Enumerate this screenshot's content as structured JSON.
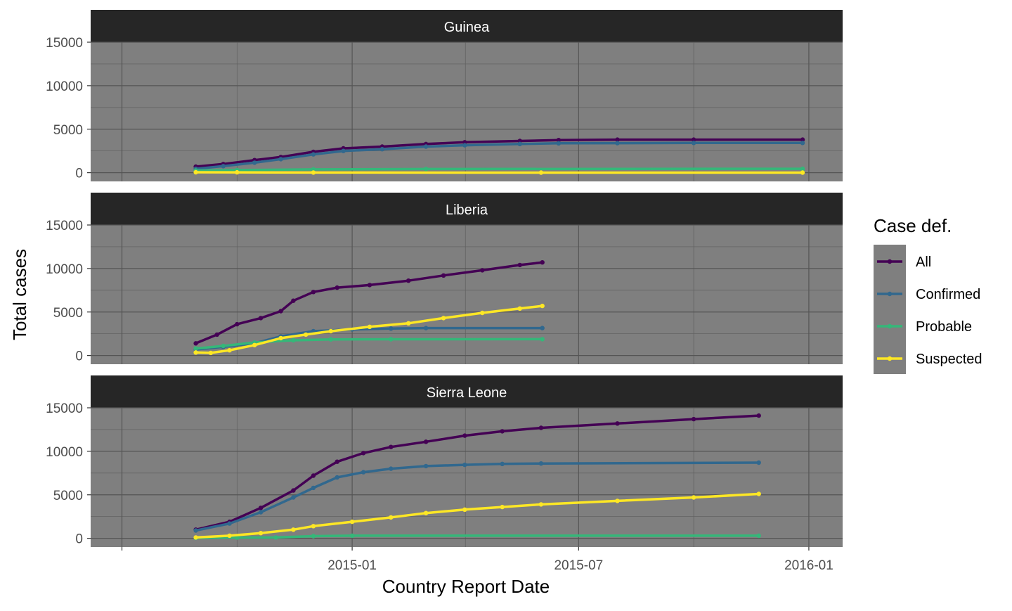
{
  "chart_data": {
    "type": "line",
    "xlabel": "Country Report Date",
    "ylabel": "Total cases",
    "x_ticks": [
      "2014-07",
      "2015-01",
      "2015-07",
      "2016-01"
    ],
    "x_tick_labels": [
      "",
      "2015-01",
      "2015-07",
      "2016-01"
    ],
    "xlim": [
      "2014-06-06",
      "2016-01-28"
    ],
    "y_ticks": [
      0,
      5000,
      10000,
      15000
    ],
    "y_tick_labels": [
      "0",
      "5000",
      "10000",
      "15000"
    ],
    "ylim": [
      -1000,
      15000
    ],
    "grid": true,
    "panel_background": "#7f7f7f",
    "strip_background": "#262626",
    "legend": {
      "title": "Case def.",
      "position": "right",
      "entries": [
        {
          "name": "All",
          "color": "#440154"
        },
        {
          "name": "Confirmed",
          "color": "#31688e"
        },
        {
          "name": "Probable",
          "color": "#35b779"
        },
        {
          "name": "Suspected",
          "color": "#fde725"
        }
      ]
    },
    "facets": [
      {
        "title": "Guinea",
        "series": [
          {
            "name": "All",
            "points": [
              [
                "2014-08-29",
                700
              ],
              [
                "2014-09-20",
                1000
              ],
              [
                "2014-10-15",
                1450
              ],
              [
                "2014-11-05",
                1800
              ],
              [
                "2014-12-01",
                2400
              ],
              [
                "2014-12-25",
                2800
              ],
              [
                "2015-01-25",
                3000
              ],
              [
                "2015-03-01",
                3300
              ],
              [
                "2015-04-01",
                3500
              ],
              [
                "2015-05-15",
                3650
              ],
              [
                "2015-06-15",
                3750
              ],
              [
                "2015-08-01",
                3800
              ],
              [
                "2015-10-01",
                3800
              ],
              [
                "2015-12-27",
                3800
              ]
            ]
          },
          {
            "name": "Confirmed",
            "points": [
              [
                "2014-08-29",
                450
              ],
              [
                "2014-09-20",
                750
              ],
              [
                "2014-10-15",
                1150
              ],
              [
                "2014-11-05",
                1550
              ],
              [
                "2014-12-01",
                2100
              ],
              [
                "2014-12-25",
                2500
              ],
              [
                "2015-01-25",
                2700
              ],
              [
                "2015-03-01",
                3000
              ],
              [
                "2015-04-01",
                3150
              ],
              [
                "2015-05-15",
                3300
              ],
              [
                "2015-06-15",
                3380
              ],
              [
                "2015-08-01",
                3400
              ],
              [
                "2015-10-01",
                3420
              ],
              [
                "2015-12-27",
                3420
              ]
            ]
          },
          {
            "name": "Probable",
            "points": [
              [
                "2014-08-29",
                250
              ],
              [
                "2014-10-01",
                300
              ],
              [
                "2014-12-01",
                380
              ],
              [
                "2015-03-01",
                420
              ],
              [
                "2015-12-27",
                450
              ]
            ]
          },
          {
            "name": "Suspected",
            "points": [
              [
                "2014-08-29",
                50
              ],
              [
                "2014-10-01",
                40
              ],
              [
                "2014-12-01",
                20
              ],
              [
                "2015-06-01",
                10
              ],
              [
                "2015-12-27",
                10
              ]
            ]
          }
        ]
      },
      {
        "title": "Liberia",
        "series": [
          {
            "name": "All",
            "points": [
              [
                "2014-08-29",
                1400
              ],
              [
                "2014-09-15",
                2400
              ],
              [
                "2014-10-01",
                3600
              ],
              [
                "2014-10-20",
                4300
              ],
              [
                "2014-11-05",
                5100
              ],
              [
                "2014-11-15",
                6300
              ],
              [
                "2014-12-01",
                7300
              ],
              [
                "2014-12-20",
                7800
              ],
              [
                "2015-01-15",
                8100
              ],
              [
                "2015-02-15",
                8600
              ],
              [
                "2015-03-15",
                9200
              ],
              [
                "2015-04-15",
                9800
              ],
              [
                "2015-05-15",
                10400
              ],
              [
                "2015-06-02",
                10700
              ]
            ]
          },
          {
            "name": "Confirmed",
            "points": [
              [
                "2014-08-29",
                700
              ],
              [
                "2014-09-20",
                1000
              ],
              [
                "2014-10-15",
                1400
              ],
              [
                "2014-11-05",
                2200
              ],
              [
                "2014-12-01",
                2800
              ],
              [
                "2015-01-01",
                3000
              ],
              [
                "2015-02-01",
                3100
              ],
              [
                "2015-03-01",
                3150
              ],
              [
                "2015-06-02",
                3150
              ]
            ]
          },
          {
            "name": "Probable",
            "points": [
              [
                "2014-08-29",
                800
              ],
              [
                "2014-09-20",
                1100
              ],
              [
                "2014-10-15",
                1500
              ],
              [
                "2014-11-15",
                1750
              ],
              [
                "2014-12-15",
                1850
              ],
              [
                "2015-02-01",
                1870
              ],
              [
                "2015-06-02",
                1880
              ]
            ]
          },
          {
            "name": "Suspected",
            "points": [
              [
                "2014-08-29",
                350
              ],
              [
                "2014-09-10",
                300
              ],
              [
                "2014-09-25",
                600
              ],
              [
                "2014-10-15",
                1200
              ],
              [
                "2014-11-05",
                2000
              ],
              [
                "2014-11-25",
                2400
              ],
              [
                "2014-12-15",
                2800
              ],
              [
                "2015-01-15",
                3300
              ],
              [
                "2015-02-15",
                3700
              ],
              [
                "2015-03-15",
                4300
              ],
              [
                "2015-04-15",
                4900
              ],
              [
                "2015-05-15",
                5400
              ],
              [
                "2015-06-02",
                5700
              ]
            ]
          }
        ]
      },
      {
        "title": "Sierra Leone",
        "series": [
          {
            "name": "All",
            "points": [
              [
                "2014-08-29",
                1000
              ],
              [
                "2014-09-25",
                1900
              ],
              [
                "2014-10-20",
                3500
              ],
              [
                "2014-11-15",
                5500
              ],
              [
                "2014-12-01",
                7200
              ],
              [
                "2014-12-20",
                8800
              ],
              [
                "2015-01-10",
                9800
              ],
              [
                "2015-02-01",
                10500
              ],
              [
                "2015-03-01",
                11100
              ],
              [
                "2015-04-01",
                11800
              ],
              [
                "2015-05-01",
                12300
              ],
              [
                "2015-06-01",
                12700
              ],
              [
                "2015-08-01",
                13200
              ],
              [
                "2015-10-01",
                13700
              ],
              [
                "2015-11-22",
                14100
              ]
            ]
          },
          {
            "name": "Confirmed",
            "points": [
              [
                "2014-08-29",
                900
              ],
              [
                "2014-09-25",
                1700
              ],
              [
                "2014-10-20",
                3000
              ],
              [
                "2014-11-15",
                4700
              ],
              [
                "2014-12-01",
                5800
              ],
              [
                "2014-12-20",
                7000
              ],
              [
                "2015-01-10",
                7600
              ],
              [
                "2015-02-01",
                8000
              ],
              [
                "2015-03-01",
                8300
              ],
              [
                "2015-04-01",
                8450
              ],
              [
                "2015-05-01",
                8550
              ],
              [
                "2015-06-01",
                8600
              ],
              [
                "2015-11-22",
                8700
              ]
            ]
          },
          {
            "name": "Probable",
            "points": [
              [
                "2014-08-29",
                50
              ],
              [
                "2014-10-01",
                80
              ],
              [
                "2014-11-01",
                100
              ],
              [
                "2014-12-01",
                250
              ],
              [
                "2015-01-01",
                300
              ],
              [
                "2015-11-22",
                300
              ]
            ]
          },
          {
            "name": "Suspected",
            "points": [
              [
                "2014-08-29",
                100
              ],
              [
                "2014-09-25",
                300
              ],
              [
                "2014-10-20",
                600
              ],
              [
                "2014-11-15",
                1000
              ],
              [
                "2014-12-01",
                1400
              ],
              [
                "2015-01-01",
                1900
              ],
              [
                "2015-02-01",
                2400
              ],
              [
                "2015-03-01",
                2900
              ],
              [
                "2015-04-01",
                3300
              ],
              [
                "2015-05-01",
                3600
              ],
              [
                "2015-06-01",
                3900
              ],
              [
                "2015-08-01",
                4300
              ],
              [
                "2015-10-01",
                4700
              ],
              [
                "2015-11-22",
                5100
              ]
            ]
          }
        ]
      }
    ]
  }
}
